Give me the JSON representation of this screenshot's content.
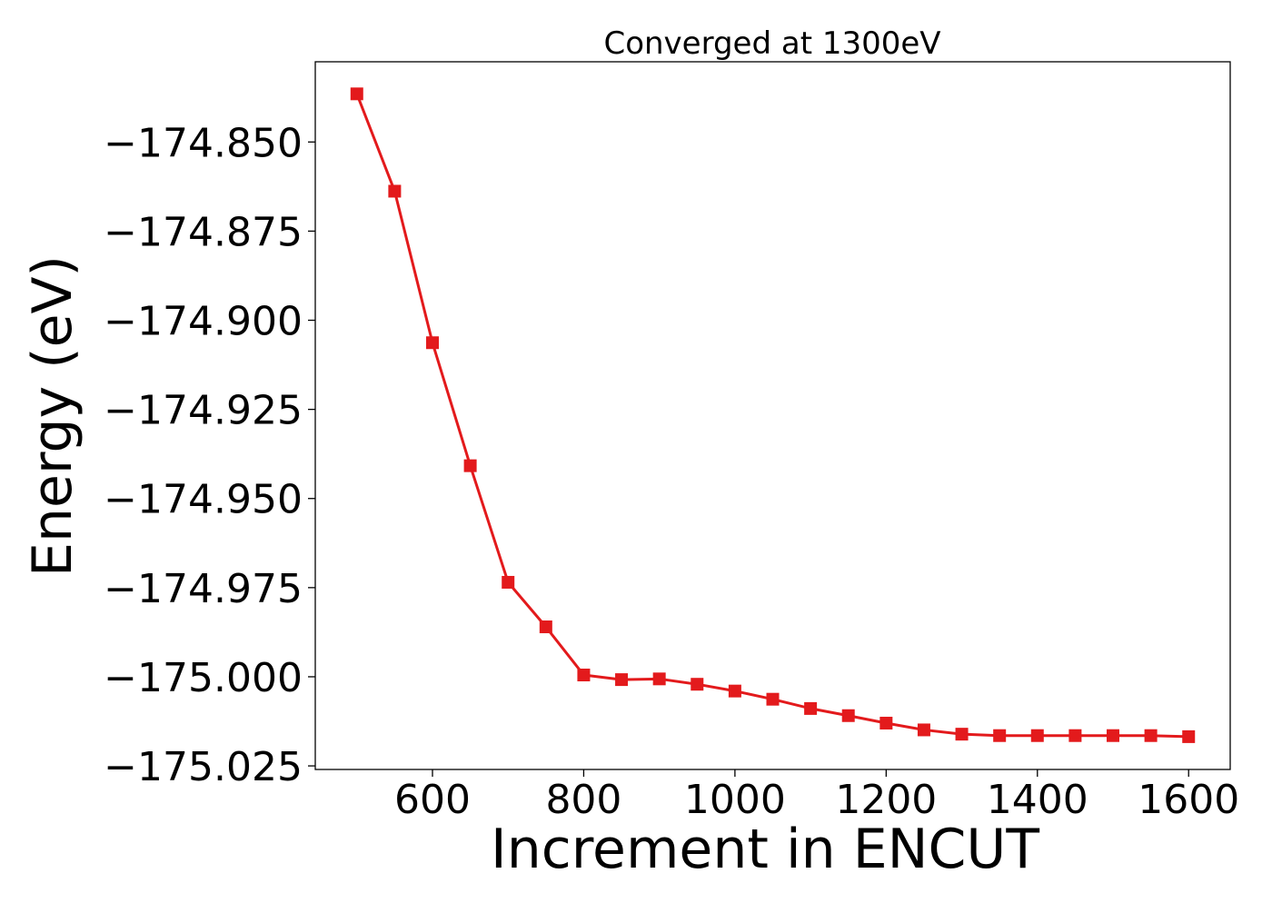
{
  "chart_data": {
    "type": "line",
    "title": "Converged at 1300eV",
    "xlabel": "Increment in ENCUT",
    "ylabel": "Energy (eV)",
    "xlim": [
      445,
      1655
    ],
    "ylim": [
      -175.026,
      -174.8275
    ],
    "xticks": [
      600,
      800,
      1000,
      1200,
      1400,
      1600
    ],
    "xtick_labels": [
      "600",
      "800",
      "1000",
      "1200",
      "1400",
      "1600"
    ],
    "yticks": [
      -174.85,
      -174.875,
      -174.9,
      -174.925,
      -174.95,
      -174.975,
      -175.0,
      -175.025
    ],
    "ytick_labels": [
      "−174.850",
      "−174.875",
      "−174.900",
      "−174.925",
      "−174.950",
      "−174.975",
      "−175.000",
      "−175.025"
    ],
    "grid": false,
    "series": [
      {
        "color": "#e31a1c",
        "marker": "square",
        "x": [
          500,
          550,
          600,
          650,
          700,
          750,
          800,
          850,
          900,
          950,
          1000,
          1050,
          1100,
          1150,
          1200,
          1250,
          1300,
          1350,
          1400,
          1450,
          1500,
          1550,
          1600
        ],
        "y": [
          -174.8365,
          -174.8638,
          -174.9063,
          -174.9408,
          -174.9735,
          -174.986,
          -174.9995,
          -175.0008,
          -175.0006,
          -175.0021,
          -175.004,
          -175.0063,
          -175.0089,
          -175.0109,
          -175.013,
          -175.0149,
          -175.0161,
          -175.0165,
          -175.0165,
          -175.0165,
          -175.0165,
          -175.0165,
          -175.0168
        ]
      }
    ]
  }
}
